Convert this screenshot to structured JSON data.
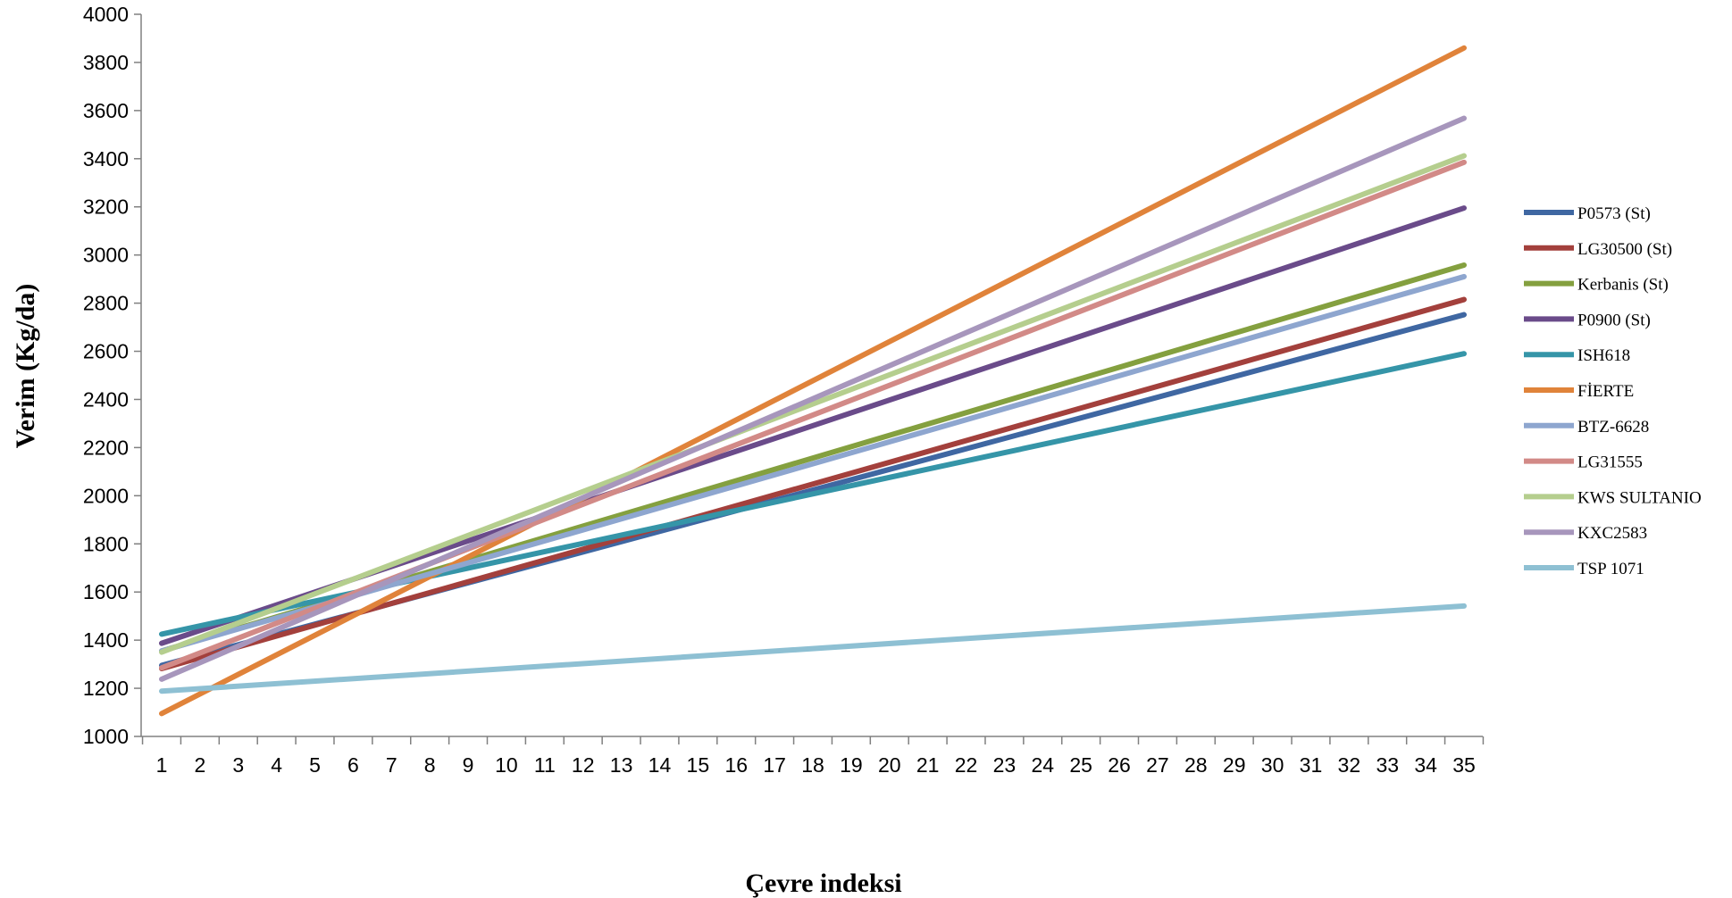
{
  "chart_data": {
    "type": "line",
    "title": "",
    "xlabel": "Çevre indeksi",
    "ylabel": "Verim (Kg/da)",
    "ylim": [
      1000,
      4000
    ],
    "yticks": [
      1000,
      1200,
      1400,
      1600,
      1800,
      2000,
      2200,
      2400,
      2600,
      2800,
      3000,
      3200,
      3400,
      3600,
      3800,
      4000
    ],
    "x": [
      1,
      2,
      3,
      4,
      5,
      6,
      7,
      8,
      9,
      10,
      11,
      12,
      13,
      14,
      15,
      16,
      17,
      18,
      19,
      20,
      21,
      22,
      23,
      24,
      25,
      26,
      27,
      28,
      29,
      30,
      31,
      32,
      33,
      34,
      35
    ],
    "grid": false,
    "legend_position": "right",
    "series": [
      {
        "name": "P0573 (St)",
        "color": "#3F67A2",
        "x": [
          1,
          35
        ],
        "values": [
          1295,
          2752
        ]
      },
      {
        "name": "LG30500 (St)",
        "color": "#A3403C",
        "x": [
          1,
          35
        ],
        "values": [
          1282,
          2815
        ]
      },
      {
        "name": "Kerbanis (St)",
        "color": "#84A03F",
        "x": [
          1,
          35
        ],
        "values": [
          1355,
          2958
        ]
      },
      {
        "name": "P0900 (St)",
        "color": "#6A4B8A",
        "x": [
          1,
          35
        ],
        "values": [
          1387,
          3195
        ]
      },
      {
        "name": "ISH618",
        "color": "#3595A8",
        "x": [
          1,
          35
        ],
        "values": [
          1425,
          2590
        ]
      },
      {
        "name": "FİERTE",
        "color": "#E0833A",
        "x": [
          1,
          35
        ],
        "values": [
          1095,
          3860
        ]
      },
      {
        "name": "BTZ-6628",
        "color": "#8EA6CF",
        "x": [
          1,
          35
        ],
        "values": [
          1355,
          2910
        ]
      },
      {
        "name": "LG31555",
        "color": "#D28A87",
        "x": [
          1,
          35
        ],
        "values": [
          1285,
          3385
        ]
      },
      {
        "name": "KWS SULTANIO",
        "color": "#B5CE8E",
        "x": [
          1,
          35
        ],
        "values": [
          1350,
          3412
        ]
      },
      {
        "name": "KXC2583",
        "color": "#A796BC",
        "x": [
          1,
          35
        ],
        "values": [
          1238,
          3568
        ]
      },
      {
        "name": "TSP 1071",
        "color": "#8EC0D3",
        "x": [
          1,
          35
        ],
        "values": [
          1188,
          1542
        ]
      }
    ]
  }
}
